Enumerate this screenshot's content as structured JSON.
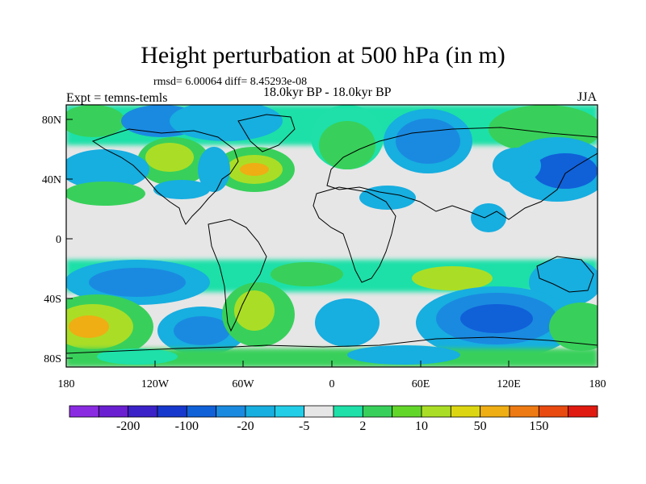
{
  "title": "Height perturbation at 500 hPa (in m)",
  "stats": "rmsd= 6.00064 diff= 8.45293e-08",
  "expt": "Expt = temns-temls",
  "period": "18.0kyr BP - 18.0kyr BP",
  "season": "JJA",
  "lat_labels": [
    "80N",
    "40N",
    "0",
    "40S",
    "80S"
  ],
  "lon_labels": [
    "180",
    "120W",
    "60W",
    "0",
    "60E",
    "120E",
    "180"
  ],
  "colorbar": {
    "colors": [
      "#8a2be2",
      "#6a1fd0",
      "#3a22c8",
      "#1738cc",
      "#1060d8",
      "#1a8ae0",
      "#17aee0",
      "#22cde8",
      "#e6e6e6",
      "#1ee0a8",
      "#38d05a",
      "#63d62a",
      "#aade26",
      "#dcd612",
      "#eeae14",
      "#ee7a14",
      "#e84a10",
      "#e01a10"
    ],
    "labels": [
      "-200",
      "-100",
      "-20",
      "-5",
      "2",
      "10",
      "50",
      "150"
    ]
  }
}
